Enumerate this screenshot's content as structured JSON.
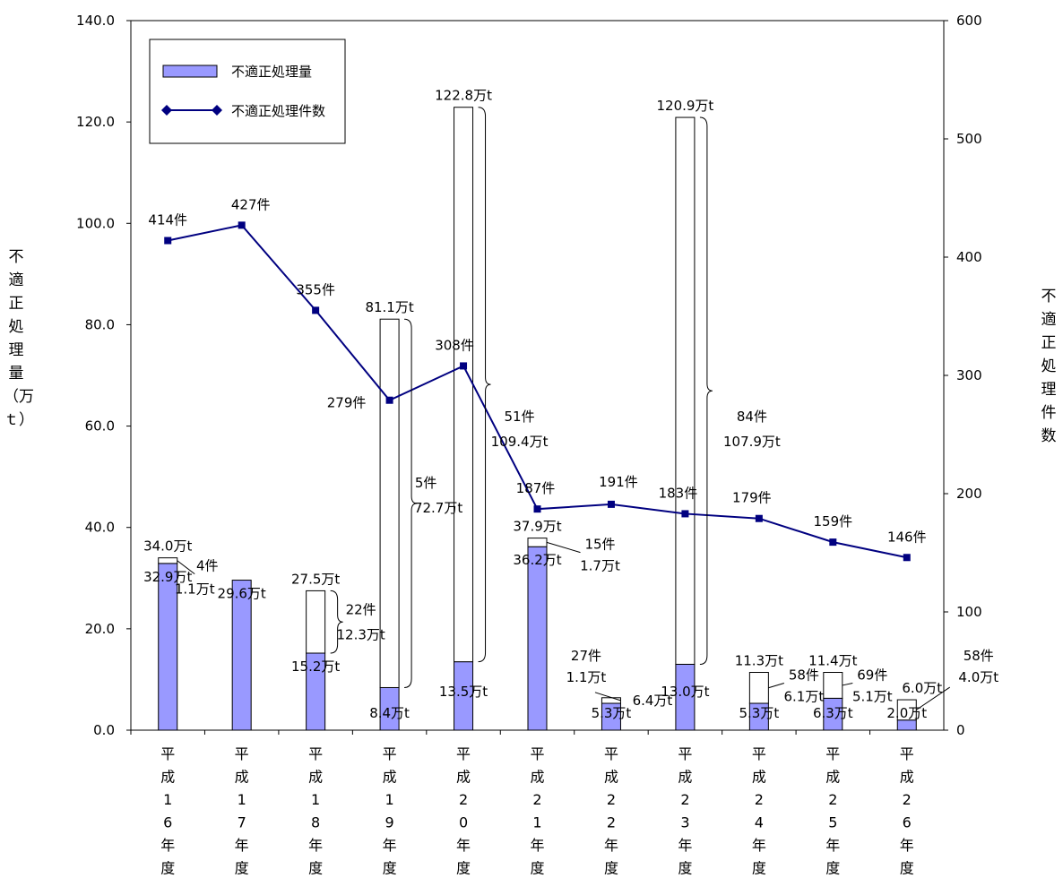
{
  "chart_data": {
    "type": "bar",
    "categories": [
      "平成16年度",
      "平成17年度",
      "平成18年度",
      "平成19年度",
      "平成20年度",
      "平成21年度",
      "平成22年度",
      "平成23年度",
      "平成24年度",
      "平成25年度",
      "平成26年度"
    ],
    "series": [
      {
        "name": "不適正処理量",
        "type": "bar",
        "axis": "left",
        "color": "#9999FF",
        "values": [
          32.9,
          29.6,
          15.2,
          8.4,
          13.5,
          36.2,
          5.3,
          13.0,
          5.3,
          6.3,
          2.0
        ]
      },
      {
        "name": "",
        "type": "bar",
        "axis": "left",
        "stacked": true,
        "color": "#FFFFFF",
        "values": [
          1.1,
          0,
          12.3,
          72.7,
          109.4,
          1.7,
          1.1,
          107.9,
          6.1,
          5.1,
          4.0
        ]
      },
      {
        "name": "不適正処理件数",
        "type": "line",
        "axis": "right",
        "color": "#000080",
        "values": [
          414,
          427,
          355,
          279,
          308,
          187,
          191,
          183,
          179,
          159,
          146
        ]
      }
    ],
    "ylabel": "不適正処理量（万ｔ）",
    "y2label": "不適正処理件数",
    "ylim": [
      0,
      140
    ],
    "y2lim": [
      0,
      600
    ],
    "yticks": [
      "0.0",
      "20.0",
      "40.0",
      "60.0",
      "80.0",
      "100.0",
      "120.0",
      "140.0"
    ],
    "y2ticks": [
      "0",
      "100",
      "200",
      "300",
      "400",
      "500",
      "600"
    ],
    "legend_position": "top-left",
    "total_labels": [
      "34.0万t",
      "",
      "27.5万t",
      "81.1万t",
      "122.8万t",
      "37.9万t",
      "6.4万t",
      "120.9万t",
      "11.3万t",
      "11.4万t",
      "6.0万t"
    ],
    "bottom_labels": [
      "32.9万t",
      "29.6万t",
      "15.2万t",
      "8.4万t",
      "13.5万t",
      "36.2万t",
      "5.3万t",
      "13.0万t",
      "5.3万t",
      "6.3万t",
      "2.0万t"
    ],
    "count_labels": [
      "414件",
      "427件",
      "355件",
      "279件",
      "308件",
      "187件",
      "191件",
      "183件",
      "179件",
      "159件",
      "146件"
    ],
    "annotations": [
      {
        "cat": 0,
        "count": "4件",
        "amount": "1.1万t"
      },
      {
        "cat": 2,
        "count": "22件",
        "amount": "12.3万t"
      },
      {
        "cat": 3,
        "count": "5件",
        "amount": "72.7万t"
      },
      {
        "cat": 4,
        "count": "51件",
        "amount": "109.4万t"
      },
      {
        "cat": 5,
        "count": "15件",
        "amount": "1.7万t"
      },
      {
        "cat": 6,
        "count": "27件",
        "amount": "1.1万t"
      },
      {
        "cat": 7,
        "count": "84件",
        "amount": "107.9万t"
      },
      {
        "cat": 8,
        "count": "58件",
        "amount": "6.1万t"
      },
      {
        "cat": 9,
        "count": "69件",
        "amount": "5.1万t"
      },
      {
        "cat": 10,
        "count": "58件",
        "amount": "4.0万t"
      }
    ]
  }
}
